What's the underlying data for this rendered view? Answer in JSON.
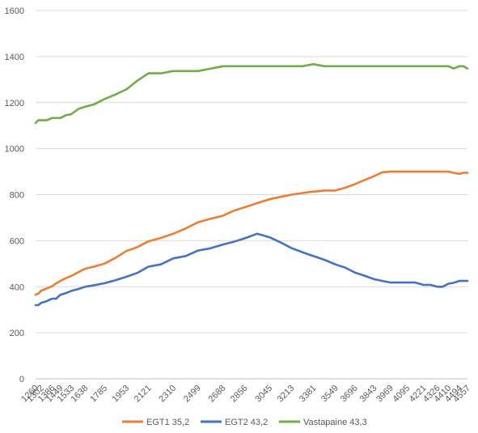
{
  "chart_data": {
    "type": "line",
    "title": "",
    "xlabel": "",
    "ylabel": "",
    "ylim": [
      0,
      1600
    ],
    "yticks": [
      0,
      200,
      400,
      600,
      800,
      1000,
      1200,
      1400,
      1600
    ],
    "grid": "horizontal",
    "legend_position": "bottom",
    "x": [
      1260,
      1281,
      1302,
      1344,
      1386,
      1418,
      1449,
      1491,
      1533,
      1586,
      1638,
      1711,
      1785,
      1869,
      1953,
      2037,
      2121,
      2216,
      2310,
      2405,
      2499,
      2594,
      2688,
      2772,
      2856,
      2951,
      3045,
      3129,
      3213,
      3297,
      3381,
      3465,
      3549,
      3623,
      3696,
      3770,
      3843,
      3906,
      3969,
      4032,
      4095,
      4158,
      4221,
      4274,
      4326,
      4368,
      4410,
      4452,
      4494,
      4526,
      4557
    ],
    "xtick_labels": [
      "1260",
      "1302",
      "1386",
      "1449",
      "1533",
      "1638",
      "1785",
      "1953",
      "2121",
      "2310",
      "2499",
      "2688",
      "2856",
      "3045",
      "3213",
      "3381",
      "3549",
      "3696",
      "3843",
      "3969",
      "4095",
      "4221",
      "4326",
      "4410",
      "4494",
      "4557"
    ],
    "series": [
      {
        "name": "EGT1 35,2",
        "color": "#ED7D31",
        "values": [
          365,
          370,
          383,
          392,
          402,
          415,
          425,
          437,
          447,
          463,
          478,
          488,
          500,
          525,
          555,
          572,
          597,
          612,
          630,
          653,
          680,
          695,
          708,
          730,
          745,
          763,
          780,
          790,
          800,
          807,
          813,
          818,
          818,
          830,
          845,
          863,
          880,
          897,
          900,
          900,
          900,
          900,
          900,
          900,
          900,
          900,
          900,
          895,
          890,
          895,
          895
        ]
      },
      {
        "name": "EGT2 43,2",
        "color": "#4472C4",
        "values": [
          320,
          320,
          330,
          337,
          348,
          348,
          365,
          372,
          382,
          390,
          400,
          407,
          415,
          428,
          443,
          460,
          487,
          497,
          523,
          533,
          557,
          567,
          583,
          595,
          610,
          630,
          615,
          593,
          568,
          550,
          533,
          517,
          497,
          483,
          462,
          448,
          433,
          425,
          418,
          418,
          418,
          418,
          408,
          408,
          400,
          400,
          413,
          417,
          425,
          425,
          425
        ]
      },
      {
        "name": "Vastapaine 43,3",
        "color": "#70AD47",
        "values": [
          1112,
          1123,
          1123,
          1123,
          1133,
          1133,
          1133,
          1145,
          1150,
          1172,
          1182,
          1193,
          1215,
          1235,
          1257,
          1295,
          1327,
          1327,
          1337,
          1337,
          1337,
          1347,
          1358,
          1358,
          1358,
          1358,
          1358,
          1358,
          1358,
          1358,
          1367,
          1358,
          1358,
          1358,
          1358,
          1358,
          1358,
          1358,
          1358,
          1358,
          1358,
          1358,
          1358,
          1358,
          1358,
          1358,
          1358,
          1348,
          1358,
          1358,
          1348
        ]
      }
    ]
  }
}
